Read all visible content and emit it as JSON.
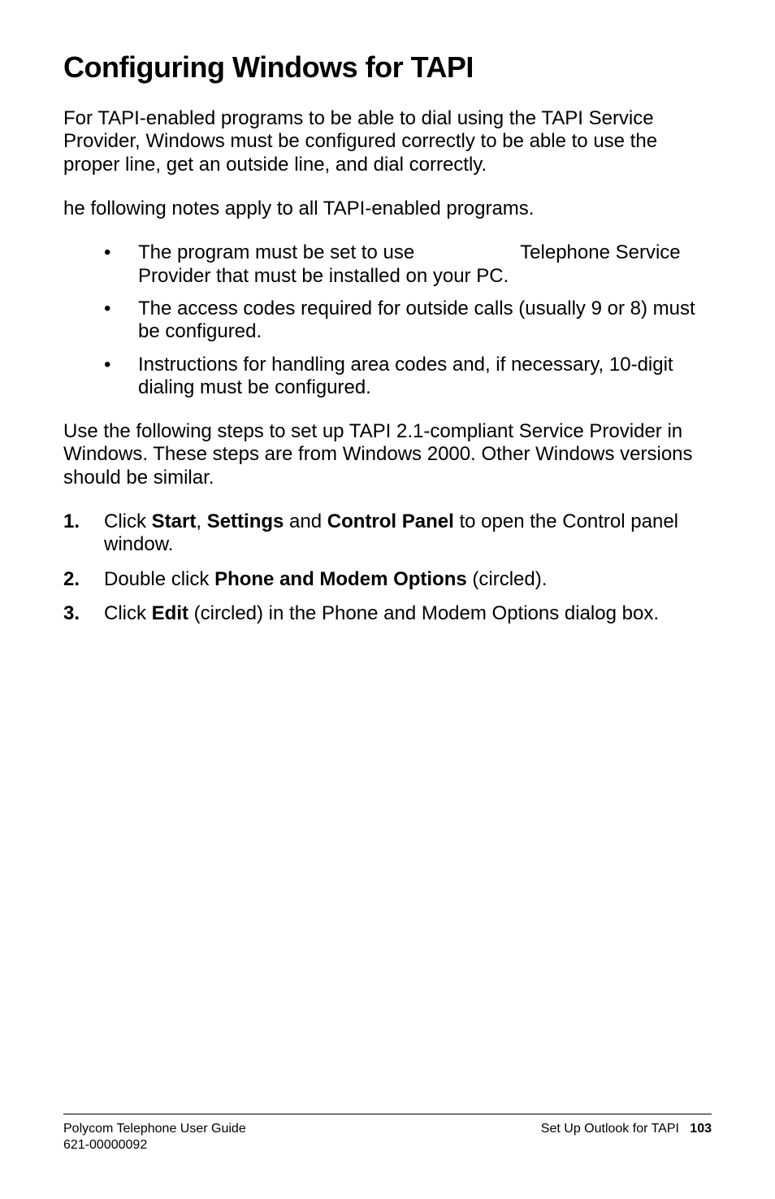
{
  "heading": "Configuring Windows for TAPI",
  "para1": "For TAPI-enabled programs to be able to dial using the TAPI Service Provider, Windows must be configured correctly to be able to use the proper line, get an outside line, and dial correctly.",
  "para2": "he following notes apply to all TAPI-enabled programs.",
  "bullets": {
    "b1_pre": "The program must be set to use",
    "b1_post": "Telephone Service Provider that must be installed on your PC.",
    "b2": "The access codes required for outside calls (usually 9 or 8) must be configured.",
    "b3": "Instructions for handling area codes and, if necessary, 10-digit dialing must be configured."
  },
  "para3": "Use the following steps to set up TAPI 2.1-compliant Service Provider in Windows. These steps are from Windows 2000. Other Windows versions should be similar.",
  "steps": {
    "s1": {
      "num": "1.",
      "pre": "Click ",
      "b1": "Start",
      "mid1": ", ",
      "b2": "Settings",
      "mid2": " and ",
      "b3": "Control Panel",
      "post": " to open the Control panel window."
    },
    "s2": {
      "num": "2.",
      "pre": "Double click ",
      "b1": "Phone and Modem Options",
      "post": " (circled)."
    },
    "s3": {
      "num": "3.",
      "pre": "Click ",
      "b1": "Edit",
      "post": " (circled) in the Phone and Modem Options dialog box."
    }
  },
  "footer": {
    "left1": "Polycom Telephone User Guide",
    "left2": "621-00000092",
    "right_label": "Set Up Outlook for TAPI",
    "page_number": "103"
  }
}
